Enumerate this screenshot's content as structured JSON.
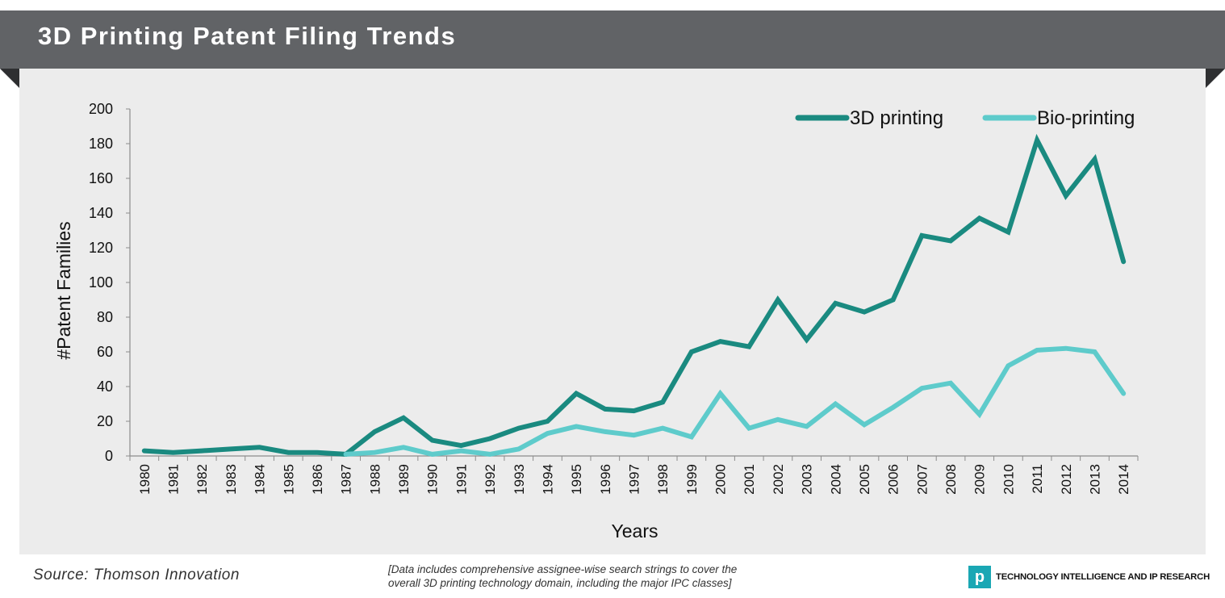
{
  "header": {
    "title": "3D Printing Patent Filing Trends"
  },
  "footer": {
    "source": "Source: Thomson Innovation",
    "note_line1": "[Data includes comprehensive assignee-wise search strings to cover the",
    "note_line2": "overall 3D printing technology domain, including the major IPC classes]",
    "brand_logo": "p",
    "brand_text": "TECHNOLOGY INTELLIGENCE AND IP RESEARCH"
  },
  "colors": {
    "banner": "#616366",
    "panel": "#ececec",
    "series_3d": "#1a8a80",
    "series_bio": "#5ecbcb",
    "brand": "#1aa7b4"
  },
  "chart_data": {
    "type": "line",
    "title": "",
    "xlabel": "Years",
    "ylabel": "#Patent   Families",
    "ylim": [
      0,
      200
    ],
    "yticks": [
      0,
      20,
      40,
      60,
      80,
      100,
      120,
      140,
      160,
      180,
      200
    ],
    "grid": false,
    "legend_position": "top-right",
    "x": [
      "1980",
      "1981",
      "1982",
      "1983",
      "1984",
      "1985",
      "1986",
      "1987",
      "1988",
      "1989",
      "1990",
      "1991",
      "1992",
      "1993",
      "1994",
      "1995",
      "1996",
      "1997",
      "1998",
      "1999",
      "2000",
      "2001",
      "2002",
      "2003",
      "2004",
      "2005",
      "2006",
      "2007",
      "2008",
      "2009",
      "2010",
      "2011",
      "2012",
      "2013",
      "2014"
    ],
    "series": [
      {
        "name": "3D printing",
        "color": "#1a8a80",
        "values": [
          3,
          2,
          3,
          4,
          5,
          2,
          2,
          1,
          14,
          22,
          9,
          6,
          10,
          16,
          20,
          36,
          27,
          26,
          31,
          60,
          66,
          63,
          90,
          67,
          88,
          83,
          90,
          127,
          124,
          137,
          129,
          182,
          150,
          171,
          112
        ]
      },
      {
        "name": "Bio-printing",
        "color": "#5ecbcb",
        "values": [
          null,
          null,
          null,
          null,
          null,
          null,
          null,
          1,
          2,
          5,
          1,
          3,
          1,
          4,
          13,
          17,
          14,
          12,
          16,
          11,
          36,
          16,
          21,
          17,
          30,
          18,
          28,
          39,
          42,
          24,
          52,
          61,
          62,
          60,
          36
        ]
      }
    ]
  }
}
